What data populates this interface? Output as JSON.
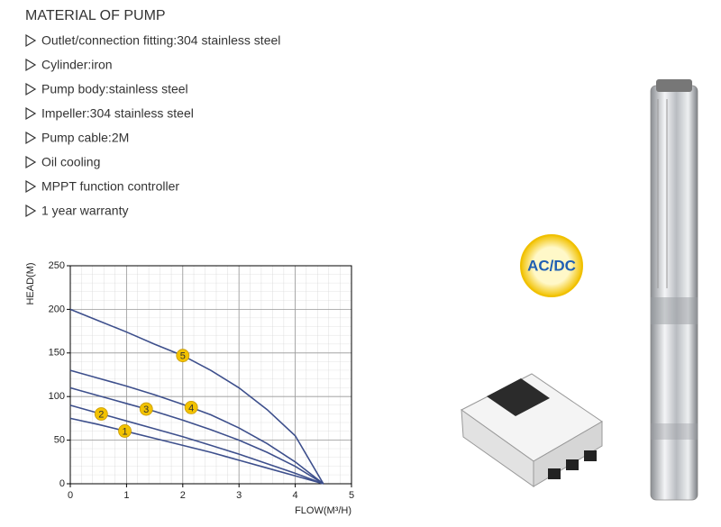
{
  "header": {
    "title": "MATERIAL OF PUMP"
  },
  "features": [
    "Outlet/connection fitting:304 stainless steel",
    "Cylinder:iron",
    "Pump body:stainless steel",
    "Impeller:304 stainless steel",
    "Pump cable:2M",
    "Oil cooling",
    "MPPT function controller",
    "1 year warranty"
  ],
  "badge": "AC/DC",
  "chart_data": {
    "type": "line",
    "x_label": "FLOW(M³/H)",
    "y_label": "HEAD(M)",
    "x": [
      0,
      0.5,
      1,
      1.5,
      2,
      2.5,
      3,
      3.5,
      4,
      4.5
    ],
    "series": [
      {
        "name": "1",
        "color": "#3d4f8c",
        "values": [
          75,
          68,
          60,
          52,
          44,
          36,
          27,
          18,
          9,
          0
        ]
      },
      {
        "name": "2",
        "color": "#3d4f8c",
        "values": [
          90,
          81,
          72,
          63,
          54,
          44,
          34,
          23,
          12,
          0
        ]
      },
      {
        "name": "3",
        "color": "#3d4f8c",
        "values": [
          110,
          101,
          92,
          83,
          73,
          62,
          50,
          36,
          20,
          0
        ]
      },
      {
        "name": "4",
        "color": "#3d4f8c",
        "values": [
          130,
          121,
          112,
          102,
          91,
          79,
          64,
          46,
          25,
          0
        ]
      },
      {
        "name": "5",
        "color": "#3d4f8c",
        "values": [
          200,
          187,
          174,
          160,
          147,
          130,
          110,
          85,
          55,
          0
        ]
      }
    ],
    "xlim": [
      0,
      5
    ],
    "ylim": [
      0,
      250
    ],
    "xticks": [
      0,
      1,
      2,
      3,
      4,
      5
    ],
    "yticks": [
      0,
      50,
      100,
      150,
      200,
      250
    ],
    "grid": true
  }
}
